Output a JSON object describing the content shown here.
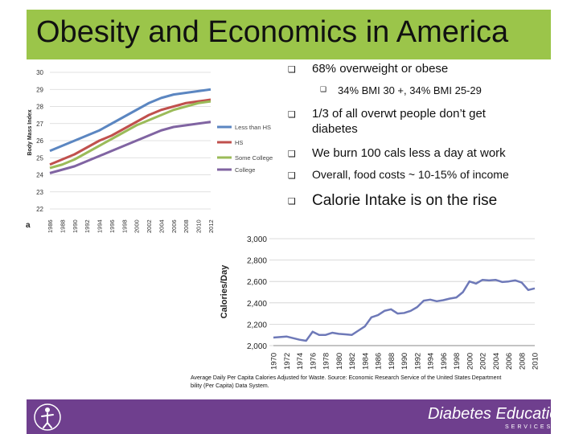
{
  "slide": {
    "title": "Obesity and Economics in America",
    "colors": {
      "title_bar": "#9bc54a",
      "footer": "#6f3f8e"
    }
  },
  "bullets": [
    {
      "text": "68% overweight or obese",
      "level": 1
    },
    {
      "text": "34% BMI 30 +,  34% BMI 25-29",
      "level": 2
    },
    {
      "text": "1/3 of all overwt people don’t get diabetes",
      "level": 1
    },
    {
      "text": "We burn 100 cals less a day at work",
      "level": 1
    },
    {
      "text": "Overall, food costs ~ 10-15% of income",
      "level": 1
    },
    {
      "text": "Calorie Intake is on the rise",
      "level": 1
    }
  ],
  "chart_data": [
    {
      "type": "line",
      "title": "",
      "xlabel": "",
      "ylabel": "Body Mass Index",
      "panel_label": "a",
      "x": [
        1986,
        1988,
        1990,
        1992,
        1994,
        1996,
        1998,
        2000,
        2002,
        2004,
        2006,
        2008,
        2010,
        2012
      ],
      "ylim": [
        22,
        30
      ],
      "yticks": [
        22,
        23,
        24,
        25,
        26,
        27,
        28,
        29,
        30
      ],
      "series": [
        {
          "name": "Less than HS",
          "color": "#5b86c1",
          "values": [
            25.4,
            25.7,
            26.0,
            26.3,
            26.6,
            27.0,
            27.4,
            27.8,
            28.2,
            28.5,
            28.7,
            28.8,
            28.9,
            29.0
          ]
        },
        {
          "name": "HS",
          "color": "#c0504d",
          "values": [
            24.6,
            24.9,
            25.2,
            25.6,
            26.0,
            26.3,
            26.7,
            27.1,
            27.5,
            27.8,
            28.0,
            28.2,
            28.3,
            28.4
          ]
        },
        {
          "name": "Some College",
          "color": "#9bbb59",
          "values": [
            24.4,
            24.6,
            24.9,
            25.3,
            25.7,
            26.1,
            26.5,
            26.9,
            27.2,
            27.5,
            27.8,
            28.0,
            28.2,
            28.3
          ]
        },
        {
          "name": "College",
          "color": "#8064a2",
          "values": [
            24.1,
            24.3,
            24.5,
            24.8,
            25.1,
            25.4,
            25.7,
            26.0,
            26.3,
            26.6,
            26.8,
            26.9,
            27.0,
            27.1
          ]
        }
      ]
    },
    {
      "type": "line",
      "title": "",
      "xlabel": "",
      "ylabel": "Calories/Day",
      "ylim": [
        2000,
        3000
      ],
      "yticks": [
        2000,
        2200,
        2400,
        2600,
        2800,
        3000
      ],
      "ytick_labels": [
        "2,000",
        "2,200",
        "2,400",
        "2,600",
        "2,800",
        "3,000"
      ],
      "x_tick_labels": [
        "1970",
        "1972",
        "1974",
        "1976",
        "1978",
        "1980",
        "1982",
        "1984",
        "1986",
        "1988",
        "1990",
        "1992",
        "1994",
        "1996",
        "1998",
        "2000",
        "2002",
        "2004",
        "2006",
        "2008",
        "2010"
      ],
      "series": [
        {
          "name": "Calories/Day",
          "color": "#6e79b8",
          "x": [
            1970,
            1971,
            1972,
            1973,
            1974,
            1975,
            1976,
            1977,
            1978,
            1979,
            1980,
            1981,
            1982,
            1983,
            1984,
            1985,
            1986,
            1987,
            1988,
            1989,
            1990,
            1991,
            1992,
            1993,
            1994,
            1995,
            1996,
            1997,
            1998,
            1999,
            2000,
            2001,
            2002,
            2003,
            2004,
            2005,
            2006,
            2007,
            2008,
            2009,
            2010
          ],
          "values": [
            2075,
            2080,
            2085,
            2070,
            2055,
            2045,
            2130,
            2100,
            2100,
            2120,
            2110,
            2105,
            2100,
            2140,
            2180,
            2265,
            2285,
            2325,
            2340,
            2300,
            2305,
            2325,
            2360,
            2420,
            2430,
            2415,
            2425,
            2440,
            2450,
            2500,
            2600,
            2580,
            2615,
            2610,
            2615,
            2595,
            2600,
            2610,
            2590,
            2520,
            2535
          ]
        }
      ],
      "caption_line1": "Average Daily Per Capita Calories Adjusted for Waste. Source: Economic Research Service of the United States Department",
      "caption_line2": "bility (Per Capita) Data System."
    }
  ]
}
